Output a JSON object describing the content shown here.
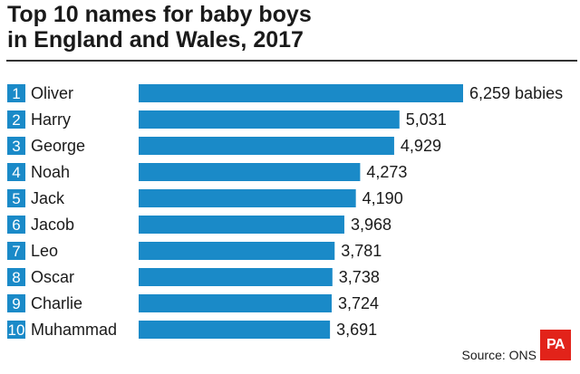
{
  "title_lines": [
    "Top 10 names for baby boys",
    "in England and Wales, 2017"
  ],
  "source": "Source: ONS",
  "logo_text": "PA",
  "colors": {
    "bar": "#1a8ac8",
    "logo": "#e2231a"
  },
  "chart_data": {
    "type": "bar",
    "orientation": "horizontal",
    "title": "Top 10 names for baby boys in England and Wales, 2017",
    "ranks": [
      "1",
      "2",
      "3",
      "4",
      "5",
      "6",
      "7",
      "8",
      "9",
      "10"
    ],
    "categories": [
      "Oliver",
      "Harry",
      "George",
      "Noah",
      "Jack",
      "Jacob",
      "Leo",
      "Oscar",
      "Charlie",
      "Muhammad"
    ],
    "values": [
      6259,
      5031,
      4929,
      4273,
      4190,
      3968,
      3781,
      3738,
      3724,
      3691
    ],
    "value_labels": [
      "6,259 babies",
      "5,031",
      "4,929",
      "4,273",
      "4,190",
      "3,968",
      "3,781",
      "3,738",
      "3,724",
      "3,691"
    ],
    "xlim": [
      0,
      6259
    ]
  }
}
